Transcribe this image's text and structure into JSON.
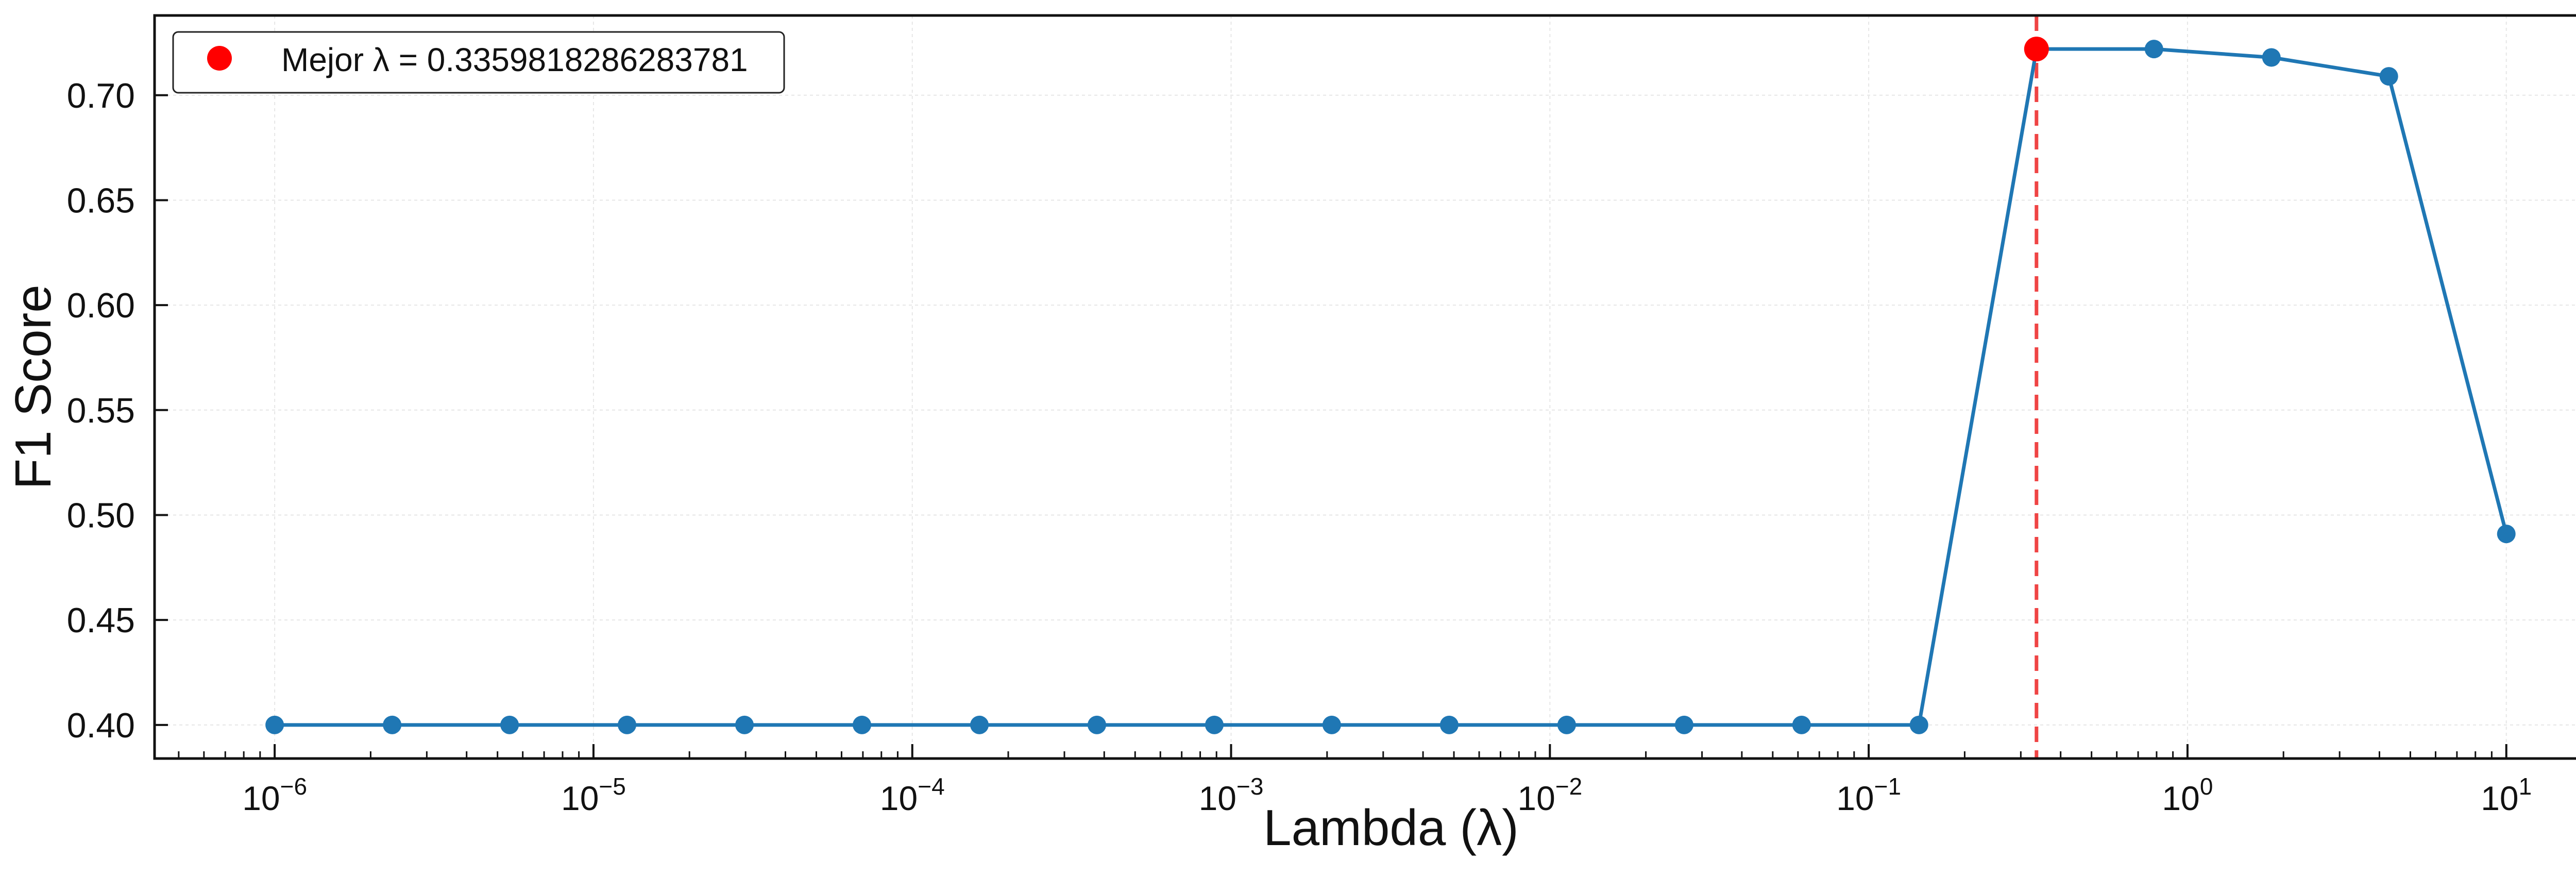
{
  "chart_data": {
    "type": "line",
    "title": "",
    "xlabel": "Lambda (λ)",
    "ylabel": "F1 Score",
    "x_scale": "log",
    "xlim": [
      4.2e-07,
      24
    ],
    "ylim": [
      0.384,
      0.738
    ],
    "x_ticks": [
      {
        "value": 1e-06,
        "base": "10",
        "exp": "−6"
      },
      {
        "value": 1e-05,
        "base": "10",
        "exp": "−5"
      },
      {
        "value": 0.0001,
        "base": "10",
        "exp": "−4"
      },
      {
        "value": 0.001,
        "base": "10",
        "exp": "−3"
      },
      {
        "value": 0.01,
        "base": "10",
        "exp": "−2"
      },
      {
        "value": 0.1,
        "base": "10",
        "exp": "−1"
      },
      {
        "value": 1,
        "base": "10",
        "exp": "0"
      },
      {
        "value": 10,
        "base": "10",
        "exp": "1"
      }
    ],
    "y_ticks": [
      {
        "value": 0.4,
        "label": "0.40"
      },
      {
        "value": 0.45,
        "label": "0.45"
      },
      {
        "value": 0.5,
        "label": "0.50"
      },
      {
        "value": 0.55,
        "label": "0.55"
      },
      {
        "value": 0.6,
        "label": "0.60"
      },
      {
        "value": 0.65,
        "label": "0.65"
      },
      {
        "value": 0.7,
        "label": "0.70"
      }
    ],
    "grid": true,
    "series": [
      {
        "color": "#1f77b4",
        "marker": "circle",
        "x": [
          1e-06,
          2.336e-06,
          5.456e-06,
          1.274e-05,
          2.976e-05,
          6.952e-05,
          0.0001624,
          0.0003793,
          0.0008859,
          0.002069,
          0.004833,
          0.01129,
          0.02637,
          0.06158,
          0.1438,
          0.336,
          0.7848,
          1.833,
          4.281,
          10
        ],
        "y": [
          0.4,
          0.4,
          0.4,
          0.4,
          0.4,
          0.4,
          0.4,
          0.4,
          0.4,
          0.4,
          0.4,
          0.4,
          0.4,
          0.4,
          0.4,
          0.722,
          0.722,
          0.718,
          0.709,
          0.491
        ]
      }
    ],
    "best_point": {
      "x": 0.3359818286283781,
      "y": 0.722,
      "color": "#ff0000",
      "line_color": "#ef4444",
      "line_style": "dashed"
    },
    "legend": {
      "placement": "top-left",
      "entries": [
        {
          "label": "Mejor λ = 0.3359818286283781",
          "color": "#ff0000",
          "marker": "circle"
        }
      ]
    }
  }
}
